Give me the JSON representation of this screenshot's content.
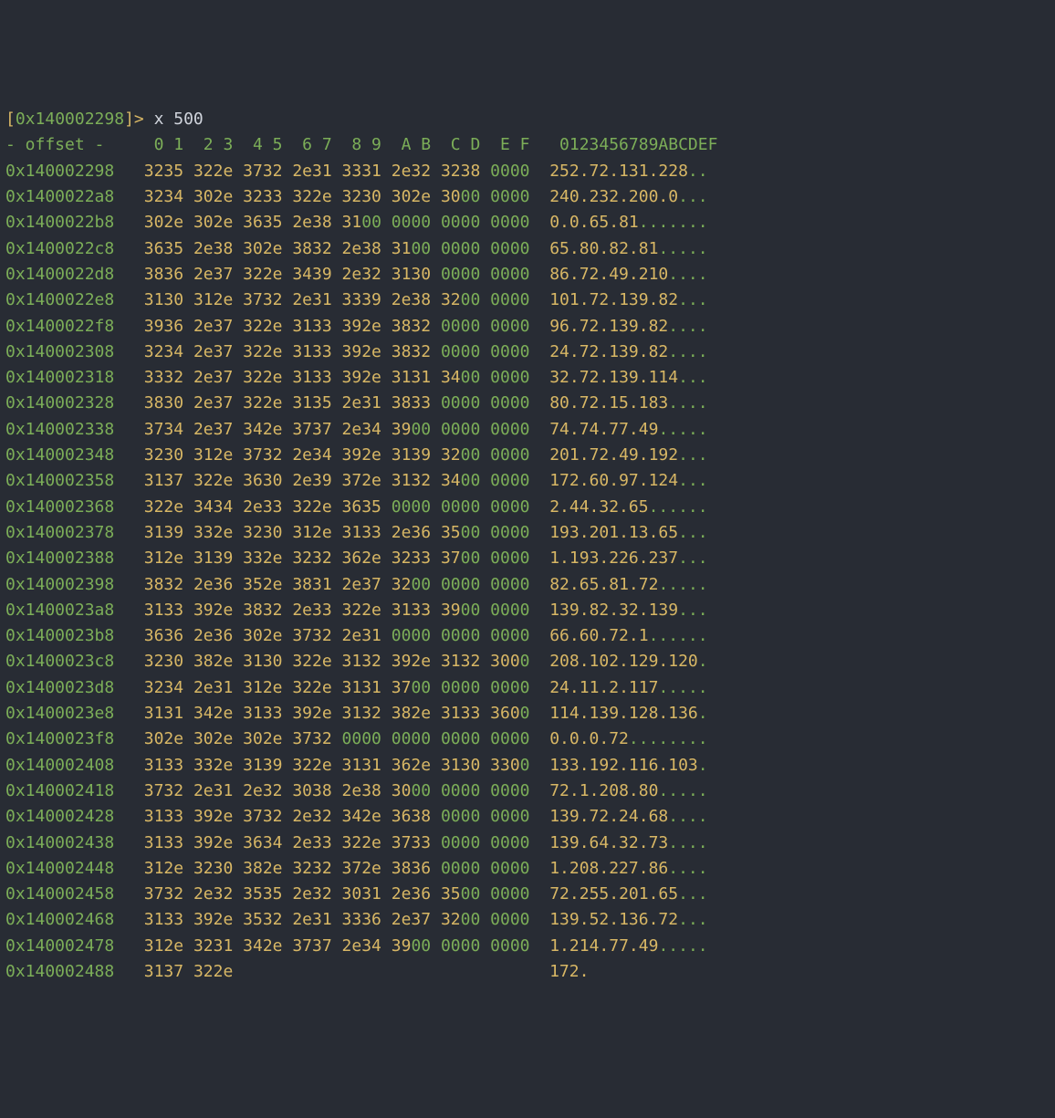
{
  "colors": {
    "bg": "#282c34",
    "yellow": "#d8b765",
    "green": "#7cae58",
    "white": "#d0d4dc",
    "grey": "#abb2bf"
  },
  "prompt": {
    "addr": "0x140002298",
    "cmd": "x 500"
  },
  "header": {
    "left": "- offset -",
    "hex_cols": [
      "0 1",
      "2 3",
      "4 5",
      "6 7",
      "8 9",
      "A B",
      "C D",
      "E F"
    ],
    "ascii": "0123456789ABCDEF"
  },
  "rows": [
    {
      "addr": "0x140002298",
      "hex": [
        "3235",
        "322e",
        "3732",
        "2e31",
        "3331",
        "2e32",
        "3238",
        "0000"
      ],
      "zerospec": [
        0,
        0,
        0,
        0,
        0,
        0,
        0,
        4
      ],
      "ascii": "252.72.131.228",
      "trail": 2
    },
    {
      "addr": "0x1400022a8",
      "hex": [
        "3234",
        "302e",
        "3233",
        "322e",
        "3230",
        "302e",
        "3000",
        "0000"
      ],
      "zerospec": [
        0,
        0,
        0,
        0,
        0,
        0,
        2,
        4
      ],
      "ascii": "240.232.200.0",
      "trail": 3
    },
    {
      "addr": "0x1400022b8",
      "hex": [
        "302e",
        "302e",
        "3635",
        "2e38",
        "3100",
        "0000",
        "0000",
        "0000"
      ],
      "zerospec": [
        0,
        0,
        0,
        0,
        2,
        4,
        4,
        4
      ],
      "ascii": "0.0.65.81",
      "trail": 7
    },
    {
      "addr": "0x1400022c8",
      "hex": [
        "3635",
        "2e38",
        "302e",
        "3832",
        "2e38",
        "3100",
        "0000",
        "0000"
      ],
      "zerospec": [
        0,
        0,
        0,
        0,
        0,
        2,
        4,
        4
      ],
      "ascii": "65.80.82.81",
      "trail": 5
    },
    {
      "addr": "0x1400022d8",
      "hex": [
        "3836",
        "2e37",
        "322e",
        "3439",
        "2e32",
        "3130",
        "0000",
        "0000"
      ],
      "zerospec": [
        0,
        0,
        0,
        0,
        0,
        0,
        4,
        4
      ],
      "ascii": "86.72.49.210",
      "trail": 4
    },
    {
      "addr": "0x1400022e8",
      "hex": [
        "3130",
        "312e",
        "3732",
        "2e31",
        "3339",
        "2e38",
        "3200",
        "0000"
      ],
      "zerospec": [
        0,
        0,
        0,
        0,
        0,
        0,
        2,
        4
      ],
      "ascii": "101.72.139.82",
      "trail": 3
    },
    {
      "addr": "0x1400022f8",
      "hex": [
        "3936",
        "2e37",
        "322e",
        "3133",
        "392e",
        "3832",
        "0000",
        "0000"
      ],
      "zerospec": [
        0,
        0,
        0,
        0,
        0,
        0,
        4,
        4
      ],
      "ascii": "96.72.139.82",
      "trail": 4
    },
    {
      "addr": "0x140002308",
      "hex": [
        "3234",
        "2e37",
        "322e",
        "3133",
        "392e",
        "3832",
        "0000",
        "0000"
      ],
      "zerospec": [
        0,
        0,
        0,
        0,
        0,
        0,
        4,
        4
      ],
      "ascii": "24.72.139.82",
      "trail": 4
    },
    {
      "addr": "0x140002318",
      "hex": [
        "3332",
        "2e37",
        "322e",
        "3133",
        "392e",
        "3131",
        "3400",
        "0000"
      ],
      "zerospec": [
        0,
        0,
        0,
        0,
        0,
        0,
        2,
        4
      ],
      "ascii": "32.72.139.114",
      "trail": 3
    },
    {
      "addr": "0x140002328",
      "hex": [
        "3830",
        "2e37",
        "322e",
        "3135",
        "2e31",
        "3833",
        "0000",
        "0000"
      ],
      "zerospec": [
        0,
        0,
        0,
        0,
        0,
        0,
        4,
        4
      ],
      "ascii": "80.72.15.183",
      "trail": 4
    },
    {
      "addr": "0x140002338",
      "hex": [
        "3734",
        "2e37",
        "342e",
        "3737",
        "2e34",
        "3900",
        "0000",
        "0000"
      ],
      "zerospec": [
        0,
        0,
        0,
        0,
        0,
        2,
        4,
        4
      ],
      "ascii": "74.74.77.49",
      "trail": 5
    },
    {
      "addr": "0x140002348",
      "hex": [
        "3230",
        "312e",
        "3732",
        "2e34",
        "392e",
        "3139",
        "3200",
        "0000"
      ],
      "zerospec": [
        0,
        0,
        0,
        0,
        0,
        0,
        2,
        4
      ],
      "ascii": "201.72.49.192",
      "trail": 3
    },
    {
      "addr": "0x140002358",
      "hex": [
        "3137",
        "322e",
        "3630",
        "2e39",
        "372e",
        "3132",
        "3400",
        "0000"
      ],
      "zerospec": [
        0,
        0,
        0,
        0,
        0,
        0,
        2,
        4
      ],
      "ascii": "172.60.97.124",
      "trail": 3
    },
    {
      "addr": "0x140002368",
      "hex": [
        "322e",
        "3434",
        "2e33",
        "322e",
        "3635",
        "0000",
        "0000",
        "0000"
      ],
      "zerospec": [
        0,
        0,
        0,
        0,
        0,
        4,
        4,
        4
      ],
      "ascii": "2.44.32.65",
      "trail": 6
    },
    {
      "addr": "0x140002378",
      "hex": [
        "3139",
        "332e",
        "3230",
        "312e",
        "3133",
        "2e36",
        "3500",
        "0000"
      ],
      "zerospec": [
        0,
        0,
        0,
        0,
        0,
        0,
        2,
        4
      ],
      "ascii": "193.201.13.65",
      "trail": 3
    },
    {
      "addr": "0x140002388",
      "hex": [
        "312e",
        "3139",
        "332e",
        "3232",
        "362e",
        "3233",
        "3700",
        "0000"
      ],
      "zerospec": [
        0,
        0,
        0,
        0,
        0,
        0,
        2,
        4
      ],
      "ascii": "1.193.226.237",
      "trail": 3
    },
    {
      "addr": "0x140002398",
      "hex": [
        "3832",
        "2e36",
        "352e",
        "3831",
        "2e37",
        "3200",
        "0000",
        "0000"
      ],
      "zerospec": [
        0,
        0,
        0,
        0,
        0,
        2,
        4,
        4
      ],
      "ascii": "82.65.81.72",
      "trail": 5
    },
    {
      "addr": "0x1400023a8",
      "hex": [
        "3133",
        "392e",
        "3832",
        "2e33",
        "322e",
        "3133",
        "3900",
        "0000"
      ],
      "zerospec": [
        0,
        0,
        0,
        0,
        0,
        0,
        2,
        4
      ],
      "ascii": "139.82.32.139",
      "trail": 3
    },
    {
      "addr": "0x1400023b8",
      "hex": [
        "3636",
        "2e36",
        "302e",
        "3732",
        "2e31",
        "0000",
        "0000",
        "0000"
      ],
      "zerospec": [
        0,
        0,
        0,
        0,
        0,
        4,
        4,
        4
      ],
      "ascii": "66.60.72.1",
      "trail": 6
    },
    {
      "addr": "0x1400023c8",
      "hex": [
        "3230",
        "382e",
        "3130",
        "322e",
        "3132",
        "392e",
        "3132",
        "3000"
      ],
      "zerospec": [
        0,
        0,
        0,
        0,
        0,
        0,
        0,
        1
      ],
      "ascii": "208.102.129.120",
      "trail": 1
    },
    {
      "addr": "0x1400023d8",
      "hex": [
        "3234",
        "2e31",
        "312e",
        "322e",
        "3131",
        "3700",
        "0000",
        "0000"
      ],
      "zerospec": [
        0,
        0,
        0,
        0,
        0,
        2,
        4,
        4
      ],
      "ascii": "24.11.2.117",
      "trail": 5
    },
    {
      "addr": "0x1400023e8",
      "hex": [
        "3131",
        "342e",
        "3133",
        "392e",
        "3132",
        "382e",
        "3133",
        "3600"
      ],
      "zerospec": [
        0,
        0,
        0,
        0,
        0,
        0,
        0,
        1
      ],
      "ascii": "114.139.128.136",
      "trail": 1
    },
    {
      "addr": "0x1400023f8",
      "hex": [
        "302e",
        "302e",
        "302e",
        "3732",
        "0000",
        "0000",
        "0000",
        "0000"
      ],
      "zerospec": [
        0,
        0,
        0,
        0,
        4,
        4,
        4,
        4
      ],
      "ascii": "0.0.0.72",
      "trail": 8
    },
    {
      "addr": "0x140002408",
      "hex": [
        "3133",
        "332e",
        "3139",
        "322e",
        "3131",
        "362e",
        "3130",
        "3300"
      ],
      "zerospec": [
        0,
        0,
        0,
        0,
        0,
        0,
        0,
        1
      ],
      "ascii": "133.192.116.103",
      "trail": 1
    },
    {
      "addr": "0x140002418",
      "hex": [
        "3732",
        "2e31",
        "2e32",
        "3038",
        "2e38",
        "3000",
        "0000",
        "0000"
      ],
      "zerospec": [
        0,
        0,
        0,
        0,
        0,
        2,
        4,
        4
      ],
      "ascii": "72.1.208.80",
      "trail": 5
    },
    {
      "addr": "0x140002428",
      "hex": [
        "3133",
        "392e",
        "3732",
        "2e32",
        "342e",
        "3638",
        "0000",
        "0000"
      ],
      "zerospec": [
        0,
        0,
        0,
        0,
        0,
        0,
        4,
        4
      ],
      "ascii": "139.72.24.68",
      "trail": 4
    },
    {
      "addr": "0x140002438",
      "hex": [
        "3133",
        "392e",
        "3634",
        "2e33",
        "322e",
        "3733",
        "0000",
        "0000"
      ],
      "zerospec": [
        0,
        0,
        0,
        0,
        0,
        0,
        4,
        4
      ],
      "ascii": "139.64.32.73",
      "trail": 4
    },
    {
      "addr": "0x140002448",
      "hex": [
        "312e",
        "3230",
        "382e",
        "3232",
        "372e",
        "3836",
        "0000",
        "0000"
      ],
      "zerospec": [
        0,
        0,
        0,
        0,
        0,
        0,
        4,
        4
      ],
      "ascii": "1.208.227.86",
      "trail": 4
    },
    {
      "addr": "0x140002458",
      "hex": [
        "3732",
        "2e32",
        "3535",
        "2e32",
        "3031",
        "2e36",
        "3500",
        "0000"
      ],
      "zerospec": [
        0,
        0,
        0,
        0,
        0,
        0,
        2,
        4
      ],
      "ascii": "72.255.201.65",
      "trail": 3
    },
    {
      "addr": "0x140002468",
      "hex": [
        "3133",
        "392e",
        "3532",
        "2e31",
        "3336",
        "2e37",
        "3200",
        "0000"
      ],
      "zerospec": [
        0,
        0,
        0,
        0,
        0,
        0,
        2,
        4
      ],
      "ascii": "139.52.136.72",
      "trail": 3
    },
    {
      "addr": "0x140002478",
      "hex": [
        "312e",
        "3231",
        "342e",
        "3737",
        "2e34",
        "3900",
        "0000",
        "0000"
      ],
      "zerospec": [
        0,
        0,
        0,
        0,
        0,
        2,
        4,
        4
      ],
      "ascii": "1.214.77.49",
      "trail": 5
    },
    {
      "addr": "0x140002488",
      "hex": [
        "3137",
        "322e"
      ],
      "zerospec": [
        0,
        0
      ],
      "ascii": "172.",
      "trail": 0
    }
  ],
  "layout": {
    "addr_width": 13,
    "hex_start_pad": " ",
    "hex_group_sep": " ",
    "ascii_gap": "  ",
    "header_left_pad": 15
  }
}
